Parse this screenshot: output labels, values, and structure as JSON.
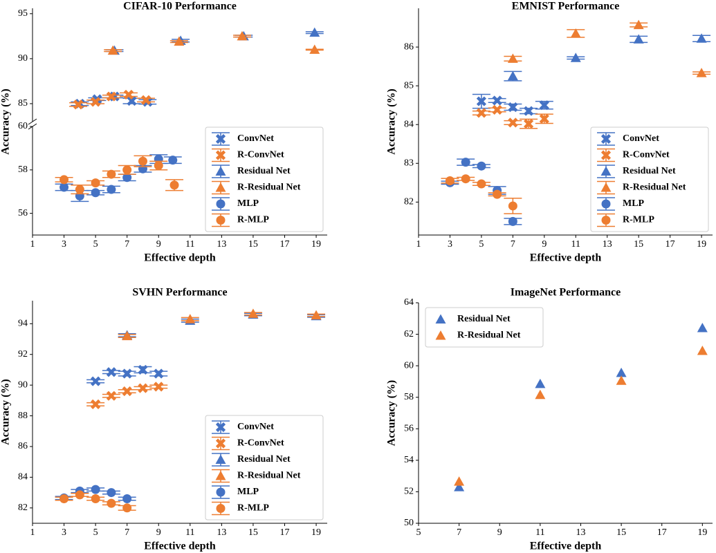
{
  "chart_data": [
    {
      "type": "scatter",
      "title": "CIFAR-10 Performance",
      "xlabel": "Effective depth",
      "ylabel": "Accuracy (%)",
      "xlim": [
        1,
        19.7
      ],
      "xticks": [
        1,
        3,
        5,
        7,
        9,
        11,
        13,
        15,
        17,
        19
      ],
      "ylim": [
        55,
        60
      ],
      "yticks": [
        56,
        58,
        60
      ],
      "y_break": {
        "ylim": [
          83,
          95.6
        ],
        "yticks": [
          85,
          90,
          95
        ]
      },
      "legend": "lower right",
      "series": [
        {
          "name": "ConvNet",
          "color": "#4472c4",
          "marker": "x",
          "x": [
            4,
            5.1,
            6.2,
            7.3,
            8.3
          ],
          "values": [
            85.0,
            85.5,
            85.8,
            85.3,
            85.2
          ],
          "errors": [
            0.2,
            0.15,
            0.15,
            0.3,
            0.25
          ]
        },
        {
          "name": "R-ConvNet",
          "color": "#ed7d31",
          "marker": "x",
          "x": [
            3.9,
            5.0,
            6.0,
            7.1,
            8.2
          ],
          "values": [
            84.9,
            85.2,
            85.8,
            86.0,
            85.4
          ],
          "errors": [
            0.2,
            0.2,
            0.15,
            0.2,
            0.2
          ]
        },
        {
          "name": "Residual Net",
          "color": "#4472c4",
          "marker": "^",
          "x": [
            6.2,
            10.4,
            14.4,
            18.9
          ],
          "values": [
            90.9,
            92.0,
            92.5,
            92.9
          ],
          "errors": [
            0.1,
            0.15,
            0.1,
            0.1
          ]
        },
        {
          "name": "R-Residual Net",
          "color": "#ed7d31",
          "marker": "^",
          "x": [
            6.1,
            10.3,
            14.3,
            18.9
          ],
          "values": [
            90.9,
            91.9,
            92.5,
            91.0
          ],
          "errors": [
            0.1,
            0.1,
            0.1,
            0.05
          ]
        },
        {
          "name": "MLP",
          "color": "#4472c4",
          "marker": "o",
          "x": [
            3,
            4,
            5,
            6,
            7,
            8,
            9,
            9.9
          ],
          "values": [
            57.2,
            56.8,
            56.95,
            57.1,
            57.65,
            58.05,
            58.5,
            58.45
          ],
          "errors": [
            0.15,
            0.25,
            0.1,
            0.15,
            0.15,
            0.15,
            0.2,
            0.15
          ]
        },
        {
          "name": "R-MLP",
          "color": "#ed7d31",
          "marker": "o",
          "x": [
            3,
            4,
            5,
            6,
            7,
            8,
            9,
            10
          ],
          "values": [
            57.55,
            57.1,
            57.4,
            57.8,
            58.0,
            58.4,
            58.2,
            57.3
          ],
          "errors": [
            0.1,
            0.2,
            0.1,
            0.15,
            0.2,
            0.25,
            0.2,
            0.25
          ]
        }
      ]
    },
    {
      "type": "scatter",
      "title": "EMNIST Performance",
      "xlabel": "Effective depth",
      "ylabel": "Accuracy (%)",
      "xlim": [
        1,
        19.7
      ],
      "xticks": [
        1,
        3,
        5,
        7,
        9,
        11,
        13,
        15,
        17,
        19
      ],
      "ylim": [
        81.15,
        87
      ],
      "yticks": [
        82,
        83,
        84,
        85,
        86
      ],
      "legend": "lower right",
      "series": [
        {
          "name": "ConvNet",
          "color": "#4472c4",
          "marker": "x",
          "x": [
            5,
            6,
            7,
            8,
            9
          ],
          "values": [
            84.6,
            84.62,
            84.45,
            84.35,
            84.5
          ],
          "errors": [
            0.18,
            0.05,
            0.08,
            0.07,
            0.1
          ]
        },
        {
          "name": "R-ConvNet",
          "color": "#ed7d31",
          "marker": "x",
          "x": [
            5,
            6,
            7,
            8,
            9
          ],
          "values": [
            84.3,
            84.38,
            84.05,
            84.02,
            84.15
          ],
          "errors": [
            0.05,
            0.05,
            0.05,
            0.12,
            0.12
          ]
        },
        {
          "name": "Residual Net",
          "color": "#4472c4",
          "marker": "^",
          "x": [
            7,
            11,
            15,
            19
          ],
          "values": [
            85.25,
            85.72,
            86.2,
            86.22
          ],
          "errors": [
            0.12,
            0.03,
            0.08,
            0.08
          ]
        },
        {
          "name": "R-Residual Net",
          "color": "#ed7d31",
          "marker": "^",
          "x": [
            7,
            11,
            15,
            19
          ],
          "values": [
            85.7,
            86.35,
            86.57,
            85.33
          ],
          "errors": [
            0.06,
            0.1,
            0.05,
            0.03
          ]
        },
        {
          "name": "MLP",
          "color": "#4472c4",
          "marker": "o",
          "x": [
            3,
            4,
            5,
            6,
            7
          ],
          "values": [
            82.5,
            83.03,
            82.93,
            82.3,
            81.5
          ],
          "errors": [
            0.04,
            0.08,
            0.04,
            0.1,
            0.08
          ]
        },
        {
          "name": "R-MLP",
          "color": "#ed7d31",
          "marker": "o",
          "x": [
            3,
            4,
            5,
            6,
            7
          ],
          "values": [
            82.55,
            82.6,
            82.47,
            82.2,
            81.9
          ],
          "errors": [
            0.06,
            0.04,
            0.04,
            0.04,
            0.2
          ]
        }
      ]
    },
    {
      "type": "scatter",
      "title": "SVHN Performance",
      "xlabel": "Effective depth",
      "ylabel": "Accuracy (%)",
      "xlim": [
        1,
        19.7
      ],
      "xticks": [
        1,
        3,
        5,
        7,
        9,
        11,
        13,
        15,
        17,
        19
      ],
      "ylim": [
        81,
        95.5
      ],
      "yticks": [
        82,
        84,
        86,
        88,
        90,
        92,
        94
      ],
      "legend": "lower right",
      "series": [
        {
          "name": "ConvNet",
          "color": "#4472c4",
          "marker": "x",
          "x": [
            5,
            6,
            7,
            8,
            9
          ],
          "values": [
            90.25,
            90.85,
            90.75,
            91.0,
            90.75
          ],
          "errors": [
            0.1,
            0.1,
            0.15,
            0.2,
            0.15
          ]
        },
        {
          "name": "R-ConvNet",
          "color": "#ed7d31",
          "marker": "x",
          "x": [
            5,
            6,
            7,
            8,
            9
          ],
          "values": [
            88.75,
            89.3,
            89.6,
            89.8,
            89.9
          ],
          "errors": [
            0.1,
            0.1,
            0.1,
            0.1,
            0.1
          ]
        },
        {
          "name": "Residual Net",
          "color": "#4472c4",
          "marker": "^",
          "x": [
            7,
            11,
            15,
            19
          ],
          "values": [
            93.25,
            94.2,
            94.6,
            94.5
          ],
          "errors": [
            0.1,
            0.1,
            0.08,
            0.08
          ]
        },
        {
          "name": "R-Residual Net",
          "color": "#ed7d31",
          "marker": "^",
          "x": [
            7,
            11,
            15,
            19
          ],
          "values": [
            93.2,
            94.3,
            94.65,
            94.55
          ],
          "errors": [
            0.1,
            0.1,
            0.08,
            0.08
          ]
        },
        {
          "name": "MLP",
          "color": "#4472c4",
          "marker": "o",
          "x": [
            3,
            4,
            5,
            6,
            7
          ],
          "values": [
            82.65,
            83.1,
            83.2,
            83.0,
            82.6
          ],
          "errors": [
            0.1,
            0.1,
            0.1,
            0.1,
            0.1
          ]
        },
        {
          "name": "R-MLP",
          "color": "#ed7d31",
          "marker": "o",
          "x": [
            3,
            4,
            5,
            6,
            7
          ],
          "values": [
            82.6,
            82.85,
            82.6,
            82.3,
            82.0
          ],
          "errors": [
            0.1,
            0.1,
            0.1,
            0.1,
            0.15
          ]
        }
      ]
    },
    {
      "type": "scatter",
      "title": "ImageNet Performance",
      "xlabel": "Effective depth",
      "ylabel": "Accuracy (%)",
      "xlim": [
        5,
        19.5
      ],
      "xticks": [
        5,
        7,
        9,
        11,
        13,
        15,
        17,
        19
      ],
      "ylim": [
        50,
        64
      ],
      "yticks": [
        50,
        52,
        54,
        56,
        58,
        60,
        62,
        64
      ],
      "legend": "upper left",
      "series": [
        {
          "name": "Residual Net",
          "color": "#4472c4",
          "marker": "^",
          "x": [
            7,
            11,
            15,
            19
          ],
          "values": [
            52.3,
            58.85,
            59.55,
            62.4
          ]
        },
        {
          "name": "R-Residual Net",
          "color": "#ed7d31",
          "marker": "^",
          "x": [
            7,
            11,
            15,
            19
          ],
          "values": [
            52.65,
            58.15,
            59.05,
            60.95
          ]
        }
      ]
    }
  ]
}
